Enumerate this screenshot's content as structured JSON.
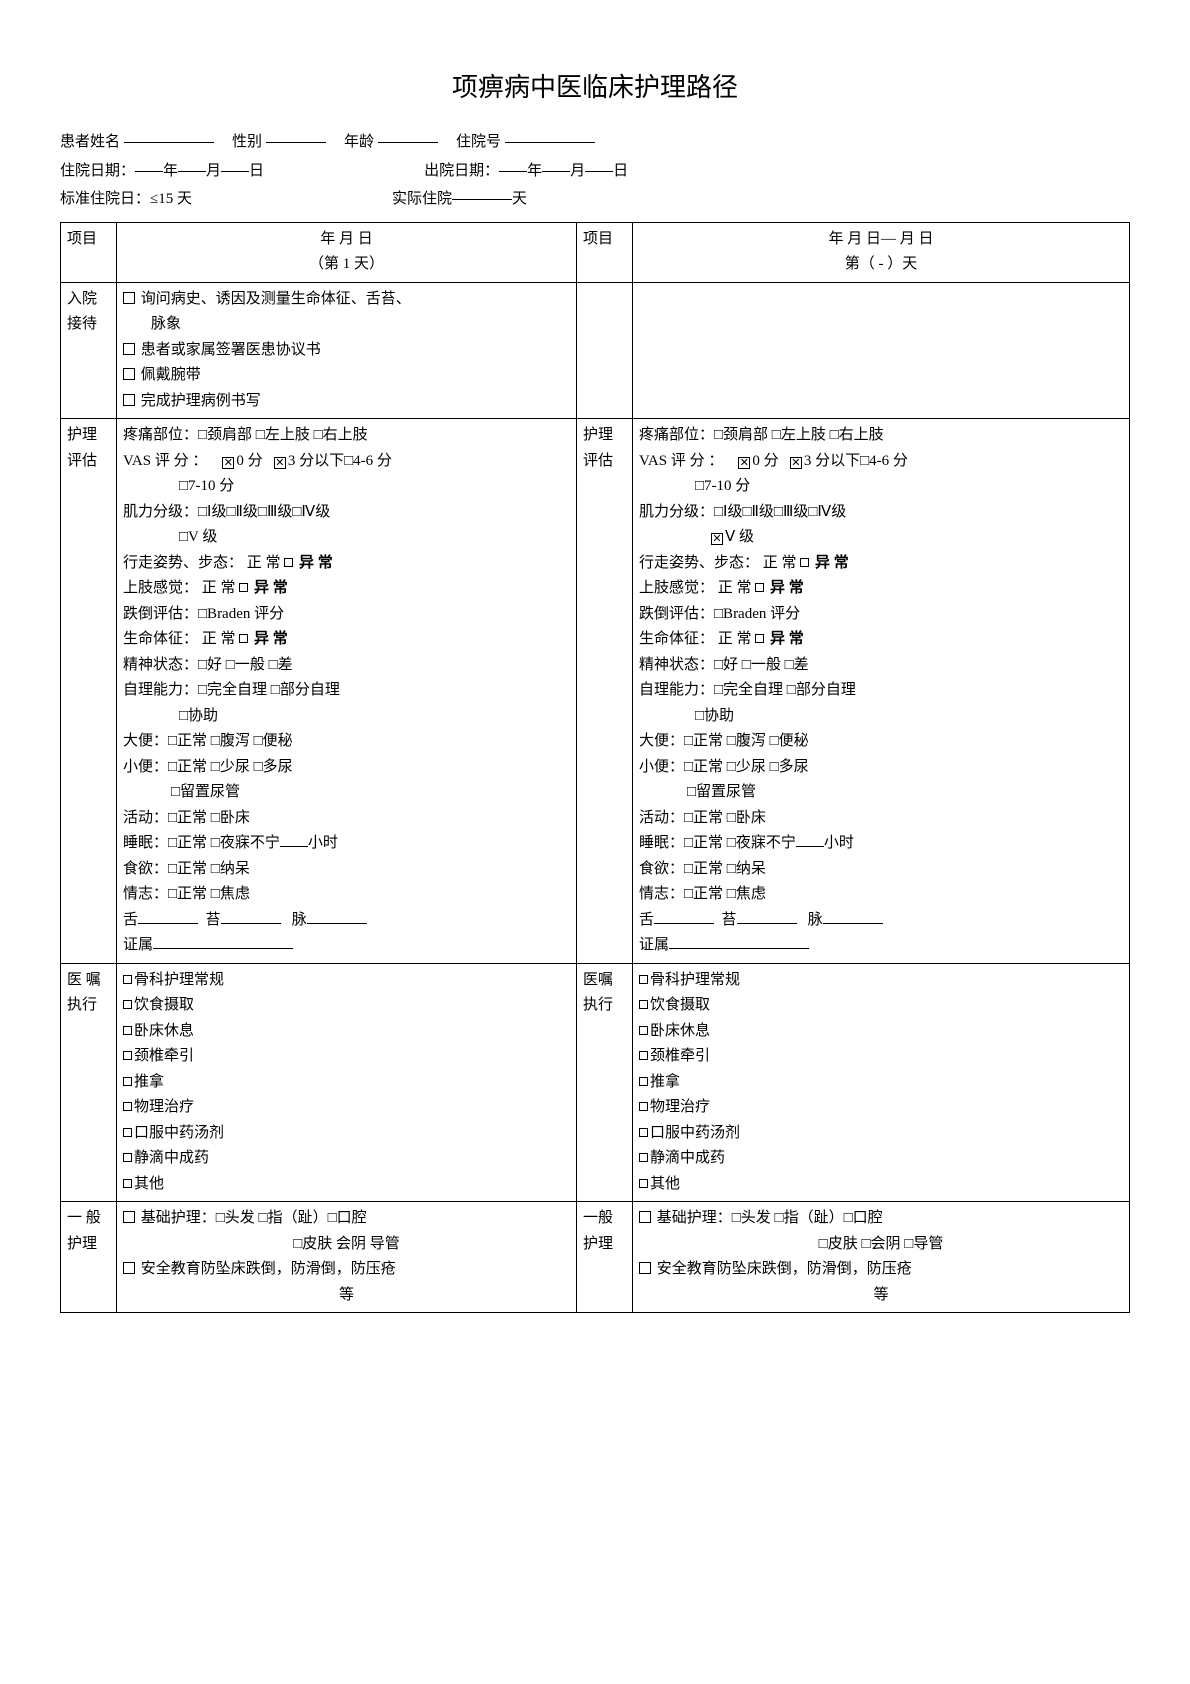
{
  "title": "项痹病中医临床护理路径",
  "header": {
    "name_label": "患者姓名",
    "sex_label": "性别",
    "age_label": "年龄",
    "admission_no_label": "住院号",
    "admission_date_label": "住院日期：",
    "discharge_date_label": "出院日期：",
    "y": "年",
    "m": "月",
    "d": "日",
    "std_stay_label": "标准住院日：≤15 天",
    "actual_stay_label": "实际住院",
    "days_unit": "天"
  },
  "col_headers": {
    "project": "项目",
    "day1_date": "年  月  日",
    "day1_sub": "（第 1 天）",
    "dayn_date": "年  月  日—  月  日",
    "dayn_sub": "第（  -  ）天"
  },
  "rows": {
    "admission": {
      "label1": "入院",
      "label2": "接待",
      "items": [
        "询问病史、诱因及测量生命体征、舌苔、",
        "脉象",
        "患者或家属签署医患协议书",
        "佩戴腕带",
        "完成护理病例书写"
      ]
    },
    "assessment": {
      "label1": "护理",
      "label2": "评估",
      "pain_site": "疼痛部位：□颈肩部 □左上肢 □右上肢",
      "vas_prefix": "VAS 评 分 ：",
      "vas_0": "0 分",
      "vas_3": "3 分以下",
      "vas_46": "□4-6 分",
      "vas_710": "□7-10 分",
      "muscle_l": "肌力分级：□Ⅰ级□Ⅱ级□Ⅲ级□Ⅳ级",
      "muscle_v_l": "□V 级",
      "muscle_v_r": "Ⅴ 级",
      "gait_prefix": "行走姿势、步态：",
      "normal": "正 常",
      "abnormal": "异 常",
      "upper_sense": "上肢感觉：",
      "fall": "跌倒评估：□Braden 评分",
      "vitals": "生命体征：",
      "mental": "精神状态：□好 □一般 □差",
      "selfcare": "自理能力：□完全自理 □部分自理",
      "assist": "□协助",
      "stool": "大便：□正常 □腹泻  □便秘",
      "urine": "小便：□正常 □少尿  □多尿",
      "catheter": "□留置尿管",
      "activity": "活动：□正常  □卧床",
      "sleep": "睡眠：□正常  □夜寐不宁",
      "hours": "小时",
      "appetite": "食欲：□正常  □纳呆",
      "mood": "情志：□正常  □焦虑",
      "tongue": "舌",
      "coating": "苔",
      "pulse": "脉",
      "syndrome": "证属"
    },
    "orders": {
      "label1_l": "医  嘱",
      "label2_l": "执行",
      "label1_r": "医嘱",
      "label2_r": "执行",
      "items": [
        "骨科护理常规",
        "饮食摄取",
        "卧床休息",
        "颈椎牵引",
        "推拿",
        "物理治疗",
        "口服中药汤剂",
        "静滴中成药",
        "其他"
      ]
    },
    "general": {
      "label1_l": "一  般",
      "label2_l": "护理",
      "label1_r": "一般",
      "label2_r": "护理",
      "basic": "基础护理：□头发 □指（趾）□口腔",
      "basic2_l": "□皮肤 会阴 导管",
      "basic2_r": "□皮肤 □会阴   □导管",
      "safety": "安全教育防坠床跌倒，防滑倒，防压疮",
      "etc": "等"
    }
  }
}
